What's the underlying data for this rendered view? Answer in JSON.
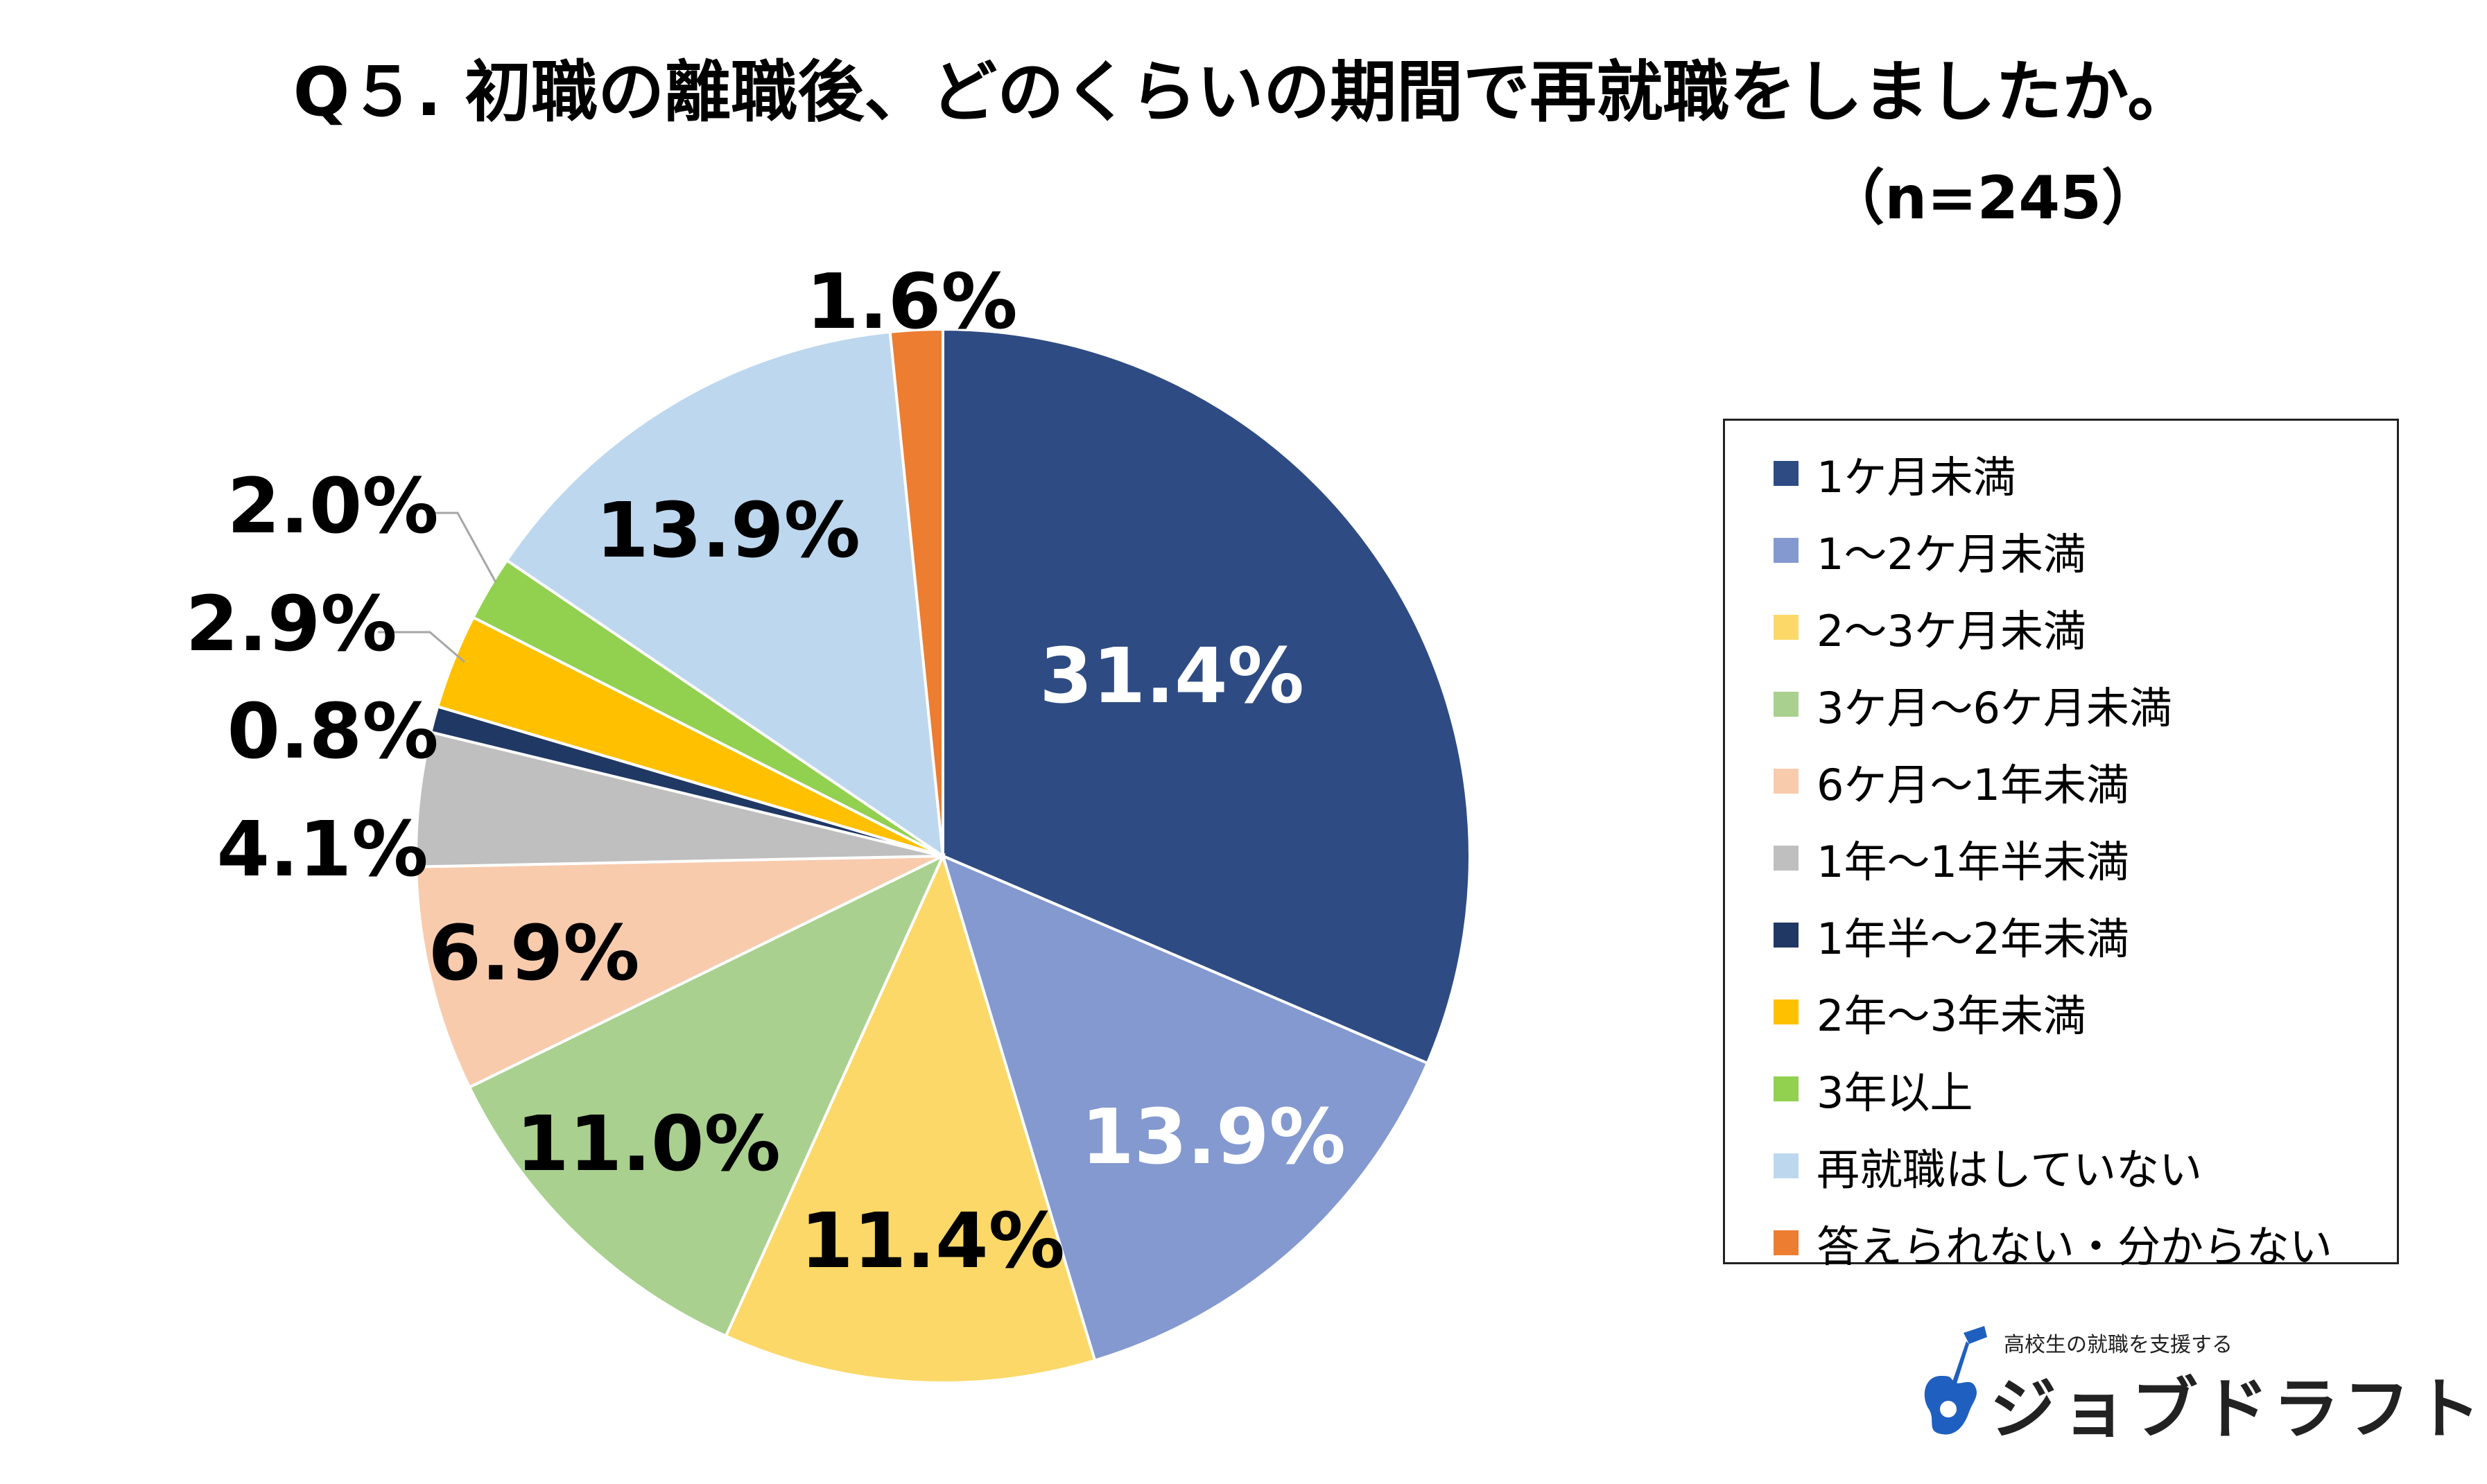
{
  "chart_data": {
    "type": "pie",
    "title": "Q５. 初職の離職後、どのくらいの期間で再就職をしましたか。",
    "subtitle": "（n=245）",
    "start_angle": "12 o'clock",
    "direction": "clockwise",
    "legend_position": "right",
    "slices": [
      {
        "label": "1ケ月未満",
        "value": 31.4,
        "display": "31.4%",
        "color": "#2E4C83",
        "label_color": "#FFFFFF"
      },
      {
        "label": "1～2ケ月未満",
        "value": 13.9,
        "display": "13.9%",
        "color": "#8399CF",
        "label_color": "#FFFFFF"
      },
      {
        "label": "2～3ケ月未満",
        "value": 11.4,
        "display": "11.4%",
        "color": "#FBD868",
        "label_color": "#000000"
      },
      {
        "label": "3ケ月～6ケ月未満",
        "value": 11.0,
        "display": "11.0%",
        "color": "#A9D08E",
        "label_color": "#000000"
      },
      {
        "label": "6ケ月～1年未満",
        "value": 6.9,
        "display": "6.9%",
        "color": "#F8CBAD",
        "label_color": "#000000"
      },
      {
        "label": "1年～1年半未満",
        "value": 4.1,
        "display": "4.1%",
        "color": "#BFBFBF",
        "label_color": "#000000"
      },
      {
        "label": "1年半～2年未満",
        "value": 0.8,
        "display": "0.8%",
        "color": "#203864",
        "label_color": "#000000"
      },
      {
        "label": "2年～3年未満",
        "value": 2.9,
        "display": "2.9%",
        "color": "#FFC000",
        "label_color": "#000000"
      },
      {
        "label": "3年以上",
        "value": 2.0,
        "display": "2.0%",
        "color": "#92D050",
        "label_color": "#000000"
      },
      {
        "label": "再就職はしていない",
        "value": 13.9,
        "display": "13.9%",
        "color": "#BDD7EE",
        "label_color": "#000000"
      },
      {
        "label": "答えられない・分からない",
        "value": 1.6,
        "display": "1.6%",
        "color": "#ED7D31",
        "label_color": "#000000"
      }
    ]
  },
  "logo": {
    "tagline": "高校生の就職を支援する",
    "name": "ジョブドラフト",
    "color": "#1F5FBF"
  }
}
